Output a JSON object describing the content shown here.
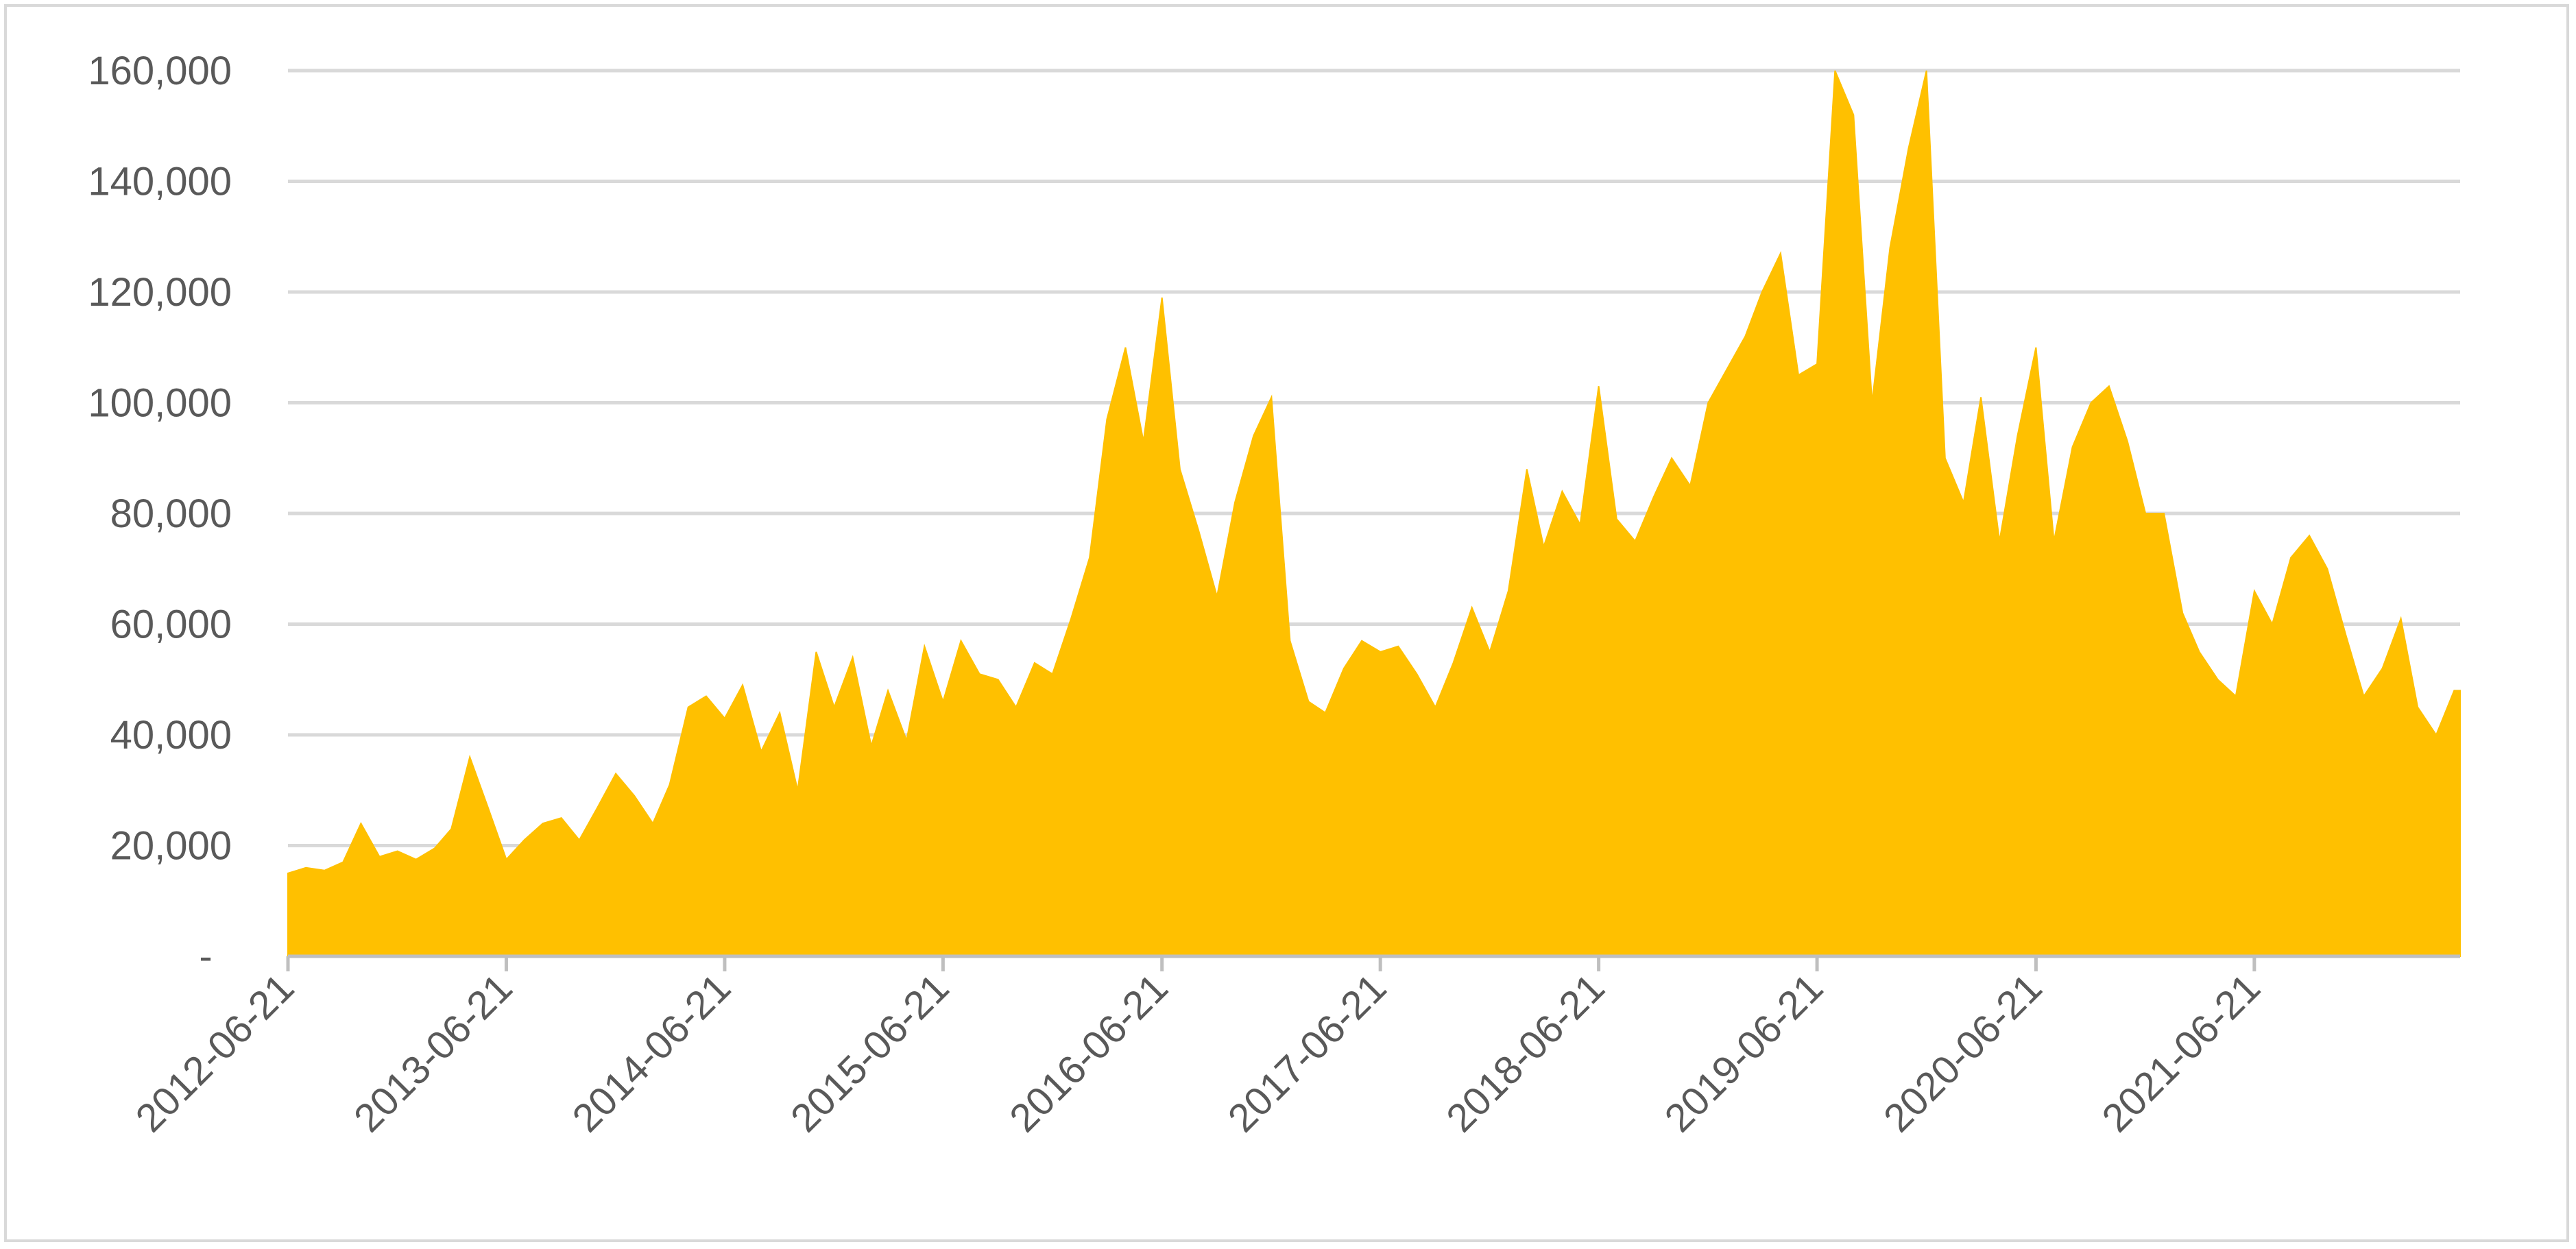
{
  "chart_data": {
    "type": "area",
    "title": "",
    "xlabel": "",
    "ylabel": "",
    "x_range": [
      "2012-06-21",
      "2022-05-31"
    ],
    "ylim": [
      0,
      160000
    ],
    "y_ticks": [
      0,
      20000,
      40000,
      60000,
      80000,
      100000,
      120000,
      140000,
      160000
    ],
    "y_tick_labels": [
      "-",
      "20,000",
      "40,000",
      "60,000",
      "80,000",
      "100,000",
      "120,000",
      "140,000",
      "160,000"
    ],
    "x_tick_labels": [
      "2012-06-21",
      "2013-06-21",
      "2014-06-21",
      "2015-06-21",
      "2016-06-21",
      "2017-06-21",
      "2018-06-21",
      "2019-06-21",
      "2020-06-21",
      "2021-06-21"
    ],
    "grid": true,
    "legend": "none",
    "colors": {
      "area": "#FFC000",
      "grid": "#d9d9d9",
      "axis": "#bfbfbf",
      "text": "#595959"
    },
    "series": [
      {
        "values": [
          [
            "2012-06-21",
            15000
          ],
          [
            "2012-07-21",
            16000
          ],
          [
            "2012-08-21",
            15500
          ],
          [
            "2012-09-21",
            17000
          ],
          [
            "2012-10-21",
            24000
          ],
          [
            "2012-11-21",
            18000
          ],
          [
            "2012-12-21",
            19000
          ],
          [
            "2013-01-21",
            17500
          ],
          [
            "2013-02-21",
            19500
          ],
          [
            "2013-03-21",
            23000
          ],
          [
            "2013-04-21",
            36000
          ],
          [
            "2013-05-21",
            27000
          ],
          [
            "2013-06-21",
            17500
          ],
          [
            "2013-07-21",
            21000
          ],
          [
            "2013-08-21",
            24000
          ],
          [
            "2013-09-21",
            25000
          ],
          [
            "2013-10-21",
            21000
          ],
          [
            "2013-11-21",
            27000
          ],
          [
            "2013-12-21",
            33000
          ],
          [
            "2014-01-21",
            29000
          ],
          [
            "2014-02-21",
            24000
          ],
          [
            "2014-03-21",
            31000
          ],
          [
            "2014-04-21",
            45000
          ],
          [
            "2014-05-21",
            47000
          ],
          [
            "2014-06-21",
            43000
          ],
          [
            "2014-07-21",
            49000
          ],
          [
            "2014-08-21",
            37000
          ],
          [
            "2014-09-21",
            44000
          ],
          [
            "2014-10-21",
            30000
          ],
          [
            "2014-11-21",
            55000
          ],
          [
            "2014-12-21",
            45000
          ],
          [
            "2015-01-21",
            54000
          ],
          [
            "2015-02-21",
            38000
          ],
          [
            "2015-03-21",
            48000
          ],
          [
            "2015-04-21",
            39000
          ],
          [
            "2015-05-21",
            56000
          ],
          [
            "2015-06-21",
            46000
          ],
          [
            "2015-07-21",
            57000
          ],
          [
            "2015-08-21",
            51000
          ],
          [
            "2015-09-21",
            50000
          ],
          [
            "2015-10-21",
            45000
          ],
          [
            "2015-11-21",
            53000
          ],
          [
            "2015-12-21",
            51000
          ],
          [
            "2016-01-21",
            61000
          ],
          [
            "2016-02-21",
            72000
          ],
          [
            "2016-03-21",
            97000
          ],
          [
            "2016-04-21",
            110000
          ],
          [
            "2016-05-21",
            93000
          ],
          [
            "2016-06-21",
            119000
          ],
          [
            "2016-07-21",
            88000
          ],
          [
            "2016-08-21",
            77000
          ],
          [
            "2016-09-21",
            65000
          ],
          [
            "2016-10-21",
            82000
          ],
          [
            "2016-11-21",
            94000
          ],
          [
            "2016-12-21",
            101000
          ],
          [
            "2017-01-21",
            57000
          ],
          [
            "2017-02-21",
            46000
          ],
          [
            "2017-03-21",
            44000
          ],
          [
            "2017-04-21",
            52000
          ],
          [
            "2017-05-21",
            57000
          ],
          [
            "2017-06-21",
            55000
          ],
          [
            "2017-07-21",
            56000
          ],
          [
            "2017-08-21",
            51000
          ],
          [
            "2017-09-21",
            45000
          ],
          [
            "2017-10-21",
            53000
          ],
          [
            "2017-11-21",
            63000
          ],
          [
            "2017-12-21",
            55000
          ],
          [
            "2018-01-21",
            66000
          ],
          [
            "2018-02-21",
            88000
          ],
          [
            "2018-03-21",
            74000
          ],
          [
            "2018-04-21",
            84000
          ],
          [
            "2018-05-21",
            78000
          ],
          [
            "2018-06-21",
            103000
          ],
          [
            "2018-07-21",
            79000
          ],
          [
            "2018-08-21",
            75000
          ],
          [
            "2018-09-21",
            83000
          ],
          [
            "2018-10-21",
            90000
          ],
          [
            "2018-11-21",
            85000
          ],
          [
            "2018-12-21",
            100000
          ],
          [
            "2019-01-21",
            106000
          ],
          [
            "2019-02-21",
            112000
          ],
          [
            "2019-03-21",
            120000
          ],
          [
            "2019-04-21",
            127000
          ],
          [
            "2019-05-21",
            105000
          ],
          [
            "2019-06-21",
            107000
          ],
          [
            "2019-07-21",
            160000
          ],
          [
            "2019-08-21",
            152000
          ],
          [
            "2019-09-21",
            100000
          ],
          [
            "2019-10-21",
            128000
          ],
          [
            "2019-11-21",
            146000
          ],
          [
            "2019-12-21",
            160000
          ],
          [
            "2020-01-21",
            90000
          ],
          [
            "2020-02-21",
            82000
          ],
          [
            "2020-03-21",
            101000
          ],
          [
            "2020-04-21",
            75000
          ],
          [
            "2020-05-21",
            94000
          ],
          [
            "2020-06-21",
            110000
          ],
          [
            "2020-07-21",
            75000
          ],
          [
            "2020-08-21",
            92000
          ],
          [
            "2020-09-21",
            100000
          ],
          [
            "2020-10-21",
            103000
          ],
          [
            "2020-11-21",
            93000
          ],
          [
            "2020-12-21",
            80000
          ],
          [
            "2021-01-21",
            80000
          ],
          [
            "2021-02-21",
            62000
          ],
          [
            "2021-03-21",
            55000
          ],
          [
            "2021-04-21",
            50000
          ],
          [
            "2021-05-21",
            47000
          ],
          [
            "2021-06-21",
            66000
          ],
          [
            "2021-07-21",
            60000
          ],
          [
            "2021-08-21",
            72000
          ],
          [
            "2021-09-21",
            76000
          ],
          [
            "2021-10-21",
            70000
          ],
          [
            "2021-11-21",
            58000
          ],
          [
            "2021-12-21",
            47000
          ],
          [
            "2022-01-21",
            52000
          ],
          [
            "2022-02-21",
            61000
          ],
          [
            "2022-03-21",
            45000
          ],
          [
            "2022-04-21",
            40000
          ],
          [
            "2022-05-21",
            48000
          ]
        ]
      }
    ]
  }
}
